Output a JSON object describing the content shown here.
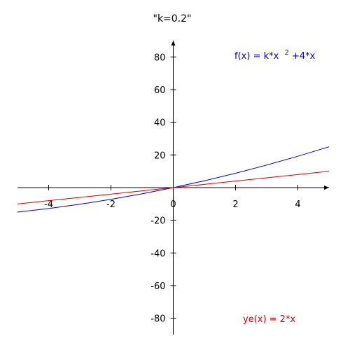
{
  "chart_data": {
    "type": "line",
    "title": "\"k=0.2\"",
    "xlim": [
      -5,
      5
    ],
    "ylim": [
      -90,
      90
    ],
    "x_ticks": [
      -4,
      -2,
      0,
      2,
      4
    ],
    "x_tick_labels": [
      "-4",
      "-2",
      "0",
      "2",
      "4"
    ],
    "y_ticks": [
      -80,
      -60,
      -40,
      -20,
      20,
      40,
      60,
      80
    ],
    "y_tick_labels": [
      "-80",
      "-60",
      "-40",
      "-20",
      "20",
      "40",
      "60",
      "80"
    ],
    "grid": false,
    "series": [
      {
        "name": "f(x) = k*x 2+4*x",
        "label_main": "f(x) = k*x",
        "label_sup": "2",
        "label_tail": "+4*x",
        "color": "#0000cc",
        "k": 0.2,
        "x": [
          -5,
          -4,
          -3,
          -2,
          -1,
          0,
          1,
          2,
          3,
          4,
          5
        ],
        "y": [
          -15,
          -12.8,
          -10.2,
          -7.2,
          -3.8,
          0,
          4.2,
          8.8,
          13.8,
          19.2,
          25
        ],
        "legend_position": "top-right"
      },
      {
        "name": "ye(x) = 2*x",
        "label_main": "ye(x) = 2*x",
        "color": "#dd0000",
        "x": [
          -5,
          -4,
          -3,
          -2,
          -1,
          0,
          1,
          2,
          3,
          4,
          5
        ],
        "y": [
          -10,
          -8,
          -6,
          -4,
          -2,
          0,
          2,
          4,
          6,
          8,
          10
        ],
        "legend_position": "bottom-right"
      }
    ]
  }
}
